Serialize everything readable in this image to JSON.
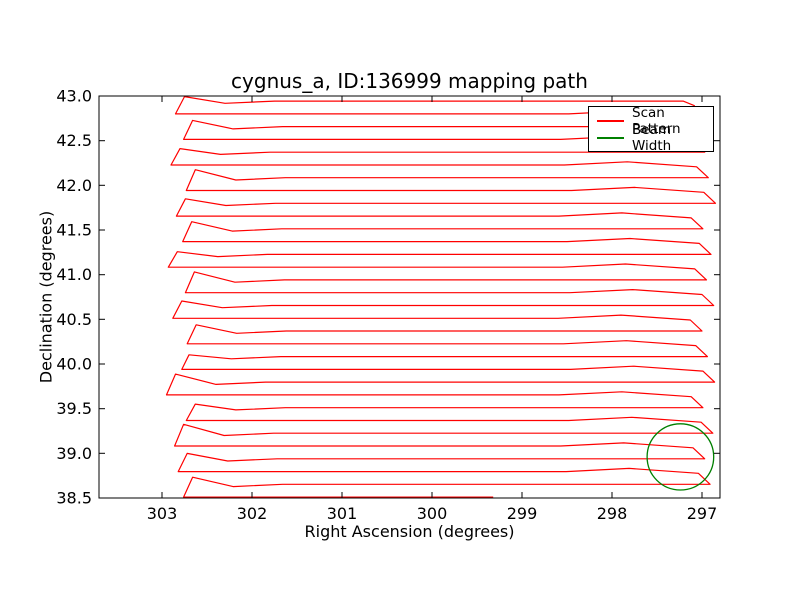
{
  "chart_data": {
    "type": "line",
    "title": "cygnus_a, ID:136999 mapping path",
    "xlabel": "Right Ascension (degrees)",
    "ylabel": "Declination (degrees)",
    "xlim": [
      303.7,
      296.8
    ],
    "ylim": [
      38.5,
      43.0
    ],
    "x_axis_inverted": true,
    "grid": false,
    "tick_direction": "in",
    "xticks": [
      {
        "value": 303,
        "label": "303"
      },
      {
        "value": 302,
        "label": "302"
      },
      {
        "value": 301,
        "label": "301"
      },
      {
        "value": 300,
        "label": "300"
      },
      {
        "value": 299,
        "label": "299"
      },
      {
        "value": 298,
        "label": "298"
      },
      {
        "value": 297,
        "label": "297"
      }
    ],
    "yticks": [
      {
        "value": 38.5,
        "label": "38.5"
      },
      {
        "value": 39.0,
        "label": "39.0"
      },
      {
        "value": 39.5,
        "label": "39.5"
      },
      {
        "value": 40.0,
        "label": "40.0"
      },
      {
        "value": 40.5,
        "label": "40.5"
      },
      {
        "value": 41.0,
        "label": "41.0"
      },
      {
        "value": 41.5,
        "label": "41.5"
      },
      {
        "value": 42.0,
        "label": "42.0"
      },
      {
        "value": 42.5,
        "label": "42.5"
      },
      {
        "value": 43.0,
        "label": "43.0"
      }
    ],
    "legend": [
      {
        "label": "Scan Pattern",
        "color": "#ff0000"
      },
      {
        "label": "Beam Width",
        "color": "#008000"
      }
    ],
    "legend_position": "upper right",
    "series_colors": {
      "scan": "#ff0000",
      "beam": "#008000"
    },
    "beam": {
      "center_ra": 297.24,
      "center_dec": 38.96,
      "radius_deg": 0.37
    },
    "scan_path": [
      [
        299.32,
        38.51
      ],
      [
        302.76,
        38.51
      ],
      [
        302.66,
        38.733
      ],
      [
        302.21,
        38.628
      ],
      [
        301.66,
        38.653
      ],
      [
        296.91,
        38.653
      ],
      [
        297.04,
        38.776
      ],
      [
        297.81,
        38.831
      ],
      [
        298.51,
        38.796
      ],
      [
        302.82,
        38.796
      ],
      [
        302.72,
        38.999
      ],
      [
        302.27,
        38.914
      ],
      [
        301.72,
        38.939
      ],
      [
        296.97,
        38.939
      ],
      [
        297.1,
        39.062
      ],
      [
        297.87,
        39.117
      ],
      [
        298.57,
        39.082
      ],
      [
        302.86,
        39.082
      ],
      [
        302.76,
        39.325
      ],
      [
        302.31,
        39.2
      ],
      [
        301.76,
        39.225
      ],
      [
        296.88,
        39.225
      ],
      [
        297.01,
        39.348
      ],
      [
        297.78,
        39.403
      ],
      [
        298.48,
        39.368
      ],
      [
        302.73,
        39.368
      ],
      [
        302.63,
        39.551
      ],
      [
        302.18,
        39.486
      ],
      [
        301.63,
        39.511
      ],
      [
        296.99,
        39.511
      ],
      [
        297.12,
        39.634
      ],
      [
        297.89,
        39.689
      ],
      [
        298.59,
        39.654
      ],
      [
        302.95,
        39.654
      ],
      [
        302.85,
        39.887
      ],
      [
        302.4,
        39.772
      ],
      [
        301.85,
        39.797
      ],
      [
        296.86,
        39.797
      ],
      [
        296.99,
        39.92
      ],
      [
        297.76,
        39.975
      ],
      [
        298.46,
        39.94
      ],
      [
        302.78,
        39.94
      ],
      [
        302.7,
        40.103
      ],
      [
        302.23,
        40.058
      ],
      [
        301.68,
        40.083
      ],
      [
        296.94,
        40.083
      ],
      [
        297.07,
        40.206
      ],
      [
        297.84,
        40.261
      ],
      [
        298.54,
        40.226
      ],
      [
        302.72,
        40.226
      ],
      [
        302.62,
        40.439
      ],
      [
        302.17,
        40.344
      ],
      [
        301.62,
        40.369
      ],
      [
        297.0,
        40.369
      ],
      [
        297.13,
        40.492
      ],
      [
        297.9,
        40.547
      ],
      [
        298.6,
        40.512
      ],
      [
        302.88,
        40.512
      ],
      [
        302.78,
        40.705
      ],
      [
        302.33,
        40.63
      ],
      [
        301.78,
        40.655
      ],
      [
        296.87,
        40.655
      ],
      [
        297.0,
        40.778
      ],
      [
        297.77,
        40.833
      ],
      [
        298.47,
        40.798
      ],
      [
        302.74,
        40.798
      ],
      [
        302.64,
        41.031
      ],
      [
        302.19,
        40.916
      ],
      [
        301.64,
        40.941
      ],
      [
        296.95,
        40.941
      ],
      [
        297.08,
        41.064
      ],
      [
        297.85,
        41.119
      ],
      [
        298.55,
        41.084
      ],
      [
        302.93,
        41.084
      ],
      [
        302.83,
        41.257
      ],
      [
        302.38,
        41.202
      ],
      [
        301.83,
        41.227
      ],
      [
        296.9,
        41.227
      ],
      [
        297.03,
        41.35
      ],
      [
        297.8,
        41.405
      ],
      [
        298.5,
        41.37
      ],
      [
        302.77,
        41.37
      ],
      [
        302.67,
        41.593
      ],
      [
        302.22,
        41.488
      ],
      [
        301.67,
        41.513
      ],
      [
        296.99,
        41.513
      ],
      [
        297.12,
        41.636
      ],
      [
        297.89,
        41.691
      ],
      [
        298.59,
        41.656
      ],
      [
        302.84,
        41.656
      ],
      [
        302.74,
        41.849
      ],
      [
        302.29,
        41.774
      ],
      [
        301.74,
        41.799
      ],
      [
        296.85,
        41.799
      ],
      [
        296.98,
        41.922
      ],
      [
        297.75,
        41.977
      ],
      [
        298.45,
        41.942
      ],
      [
        302.73,
        41.942
      ],
      [
        302.63,
        42.175
      ],
      [
        302.18,
        42.06
      ],
      [
        301.63,
        42.085
      ],
      [
        296.93,
        42.085
      ],
      [
        297.06,
        42.208
      ],
      [
        297.83,
        42.263
      ],
      [
        298.53,
        42.228
      ],
      [
        302.9,
        42.228
      ],
      [
        302.8,
        42.411
      ],
      [
        302.35,
        42.346
      ],
      [
        301.8,
        42.371
      ],
      [
        296.97,
        42.371
      ],
      [
        297.1,
        42.494
      ],
      [
        297.87,
        42.549
      ],
      [
        298.57,
        42.514
      ],
      [
        302.76,
        42.514
      ],
      [
        302.66,
        42.727
      ],
      [
        302.21,
        42.632
      ],
      [
        301.66,
        42.657
      ],
      [
        296.88,
        42.657
      ],
      [
        297.01,
        42.78
      ],
      [
        297.78,
        42.835
      ],
      [
        298.48,
        42.8
      ],
      [
        302.85,
        42.8
      ],
      [
        302.75,
        42.993
      ],
      [
        302.3,
        42.918
      ],
      [
        301.75,
        42.943
      ],
      [
        297.21,
        42.943
      ],
      [
        297.08,
        42.89
      ]
    ]
  }
}
